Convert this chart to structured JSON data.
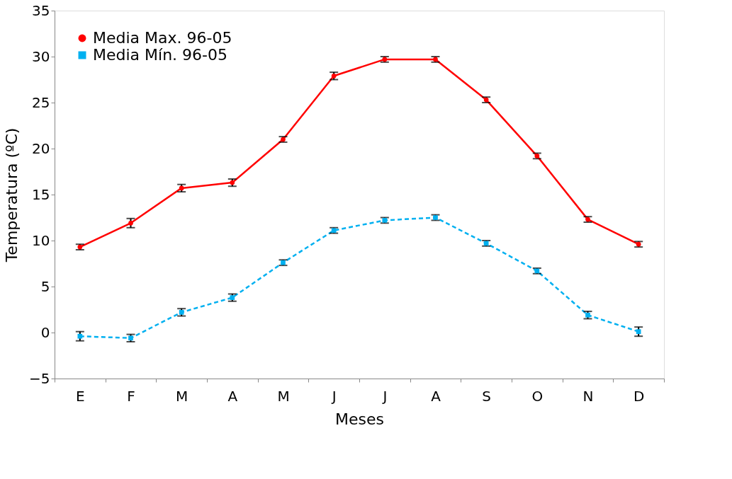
{
  "chart_data": {
    "type": "line",
    "xlabel": "Meses",
    "ylabel": "Temperatura (ºC)",
    "categories": [
      "E",
      "F",
      "M",
      "A",
      "M",
      "J",
      "J",
      "A",
      "S",
      "O",
      "N",
      "D"
    ],
    "series": [
      {
        "name": "Media Max. 96-05",
        "color": "#ff0000",
        "marker": "circle",
        "line_style": "solid",
        "values": [
          9.3,
          11.9,
          15.7,
          16.3,
          21.0,
          27.9,
          29.7,
          29.7,
          25.3,
          19.2,
          12.3,
          9.6
        ],
        "errors": [
          0.3,
          0.5,
          0.4,
          0.4,
          0.3,
          0.4,
          0.3,
          0.3,
          0.3,
          0.3,
          0.3,
          0.3
        ]
      },
      {
        "name": "Media Mín. 96-05",
        "color": "#00b0f0",
        "marker": "square",
        "line_style": "dashed",
        "values": [
          -0.4,
          -0.6,
          2.2,
          3.8,
          7.6,
          11.1,
          12.2,
          12.5,
          9.7,
          6.7,
          1.9,
          0.1
        ],
        "errors": [
          0.5,
          0.4,
          0.4,
          0.4,
          0.3,
          0.3,
          0.3,
          0.3,
          0.3,
          0.3,
          0.4,
          0.5
        ]
      }
    ],
    "ylim": [
      -5,
      35
    ],
    "yticks": [
      -5,
      0,
      5,
      10,
      15,
      20,
      25,
      30,
      35
    ],
    "grid": false,
    "legend": "top left"
  }
}
